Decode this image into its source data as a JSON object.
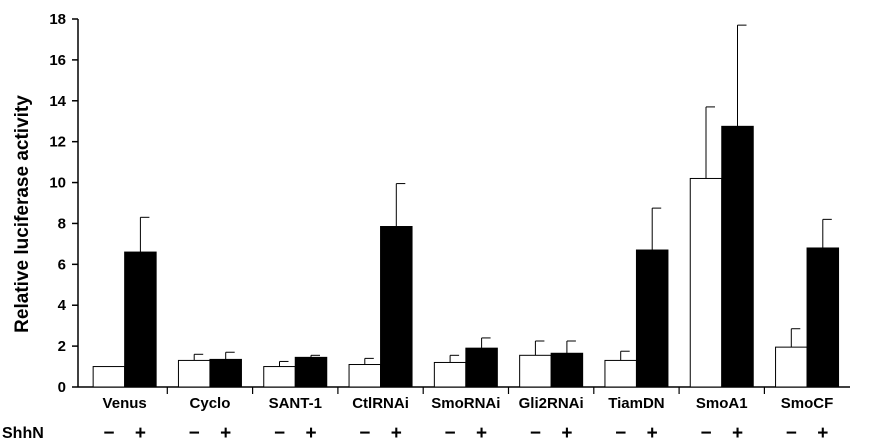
{
  "chart_data": {
    "type": "bar",
    "ylabel": "Relative luciferase activity",
    "xlabel": "",
    "ylim": [
      0,
      18
    ],
    "yticks": [
      0,
      2,
      4,
      6,
      8,
      10,
      12,
      14,
      16,
      18
    ],
    "categories": [
      "Venus",
      "Cyclo",
      "SANT-1",
      "CtlRNAi",
      "SmoRNAi",
      "Gli2RNAi",
      "TiamDN",
      "SmoA1",
      "SmoCF"
    ],
    "series": [
      {
        "name": "−",
        "color": "#ffffff",
        "values": [
          1.0,
          1.3,
          1.0,
          1.1,
          1.2,
          1.55,
          1.3,
          10.2,
          1.95
        ],
        "errors": [
          0.0,
          0.3,
          0.25,
          0.3,
          0.35,
          0.7,
          0.45,
          3.5,
          0.9
        ]
      },
      {
        "name": "+",
        "color": "#000000",
        "values": [
          6.6,
          1.35,
          1.45,
          7.85,
          1.9,
          1.65,
          6.7,
          12.75,
          6.8
        ],
        "errors": [
          1.7,
          0.35,
          0.1,
          2.1,
          0.5,
          0.6,
          2.05,
          4.95,
          1.4
        ]
      }
    ],
    "treatment_label": "ShhN",
    "treatment_signs": [
      "−",
      "+"
    ],
    "grid": false,
    "legend": "none"
  }
}
